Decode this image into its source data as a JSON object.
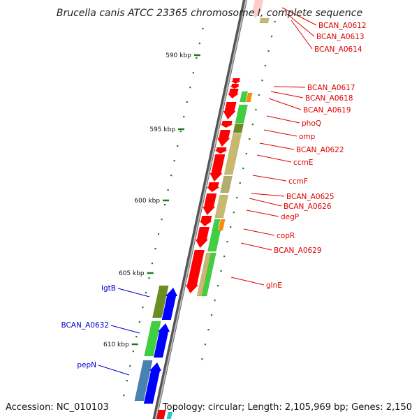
{
  "title": "Brucella canis ATCC 23365 chromosome I, complete sequence",
  "footer": {
    "accession": "Accession: NC_010103",
    "topology": "Topology: circular; Length: 2,105,969 bp; Genes: 2,150"
  },
  "colors": {
    "red": "#ff0000",
    "green": "#3fd03f",
    "olive": "#6b8e23",
    "khaki": "#c8b96e",
    "orange": "#ff8c00",
    "blue": "#0000ff",
    "steel": "#4682b4",
    "label_red": "#e00000",
    "label_blue": "#0000cc",
    "tick": "#1a7a1a",
    "backbone": "#777777"
  },
  "ticks": [
    {
      "kbp": 590,
      "label": "590 kbp"
    },
    {
      "kbp": 595,
      "label": "595 kbp"
    },
    {
      "kbp": 600,
      "label": "600 kbp"
    },
    {
      "kbp": 605,
      "label": "605 kbp"
    },
    {
      "kbp": 610,
      "label": "610 kbp"
    }
  ],
  "genes_right": [
    {
      "name": "BCAN_A0612"
    },
    {
      "name": "BCAN_A0613"
    },
    {
      "name": "BCAN_A0614"
    },
    {
      "name": "BCAN_A0617"
    },
    {
      "name": "BCAN_A0618"
    },
    {
      "name": "BCAN_A0619"
    },
    {
      "name": "phoQ"
    },
    {
      "name": "omp"
    },
    {
      "name": "BCAN_A0622"
    },
    {
      "name": "ccmE"
    },
    {
      "name": "ccmF"
    },
    {
      "name": "BCAN_A0625"
    },
    {
      "name": "BCAN_A0626"
    },
    {
      "name": "degP"
    },
    {
      "name": "copR"
    },
    {
      "name": "BCAN_A0629"
    },
    {
      "name": "glnE"
    }
  ],
  "genes_left": [
    {
      "name": "lgtB"
    },
    {
      "name": "BCAN_A0632"
    },
    {
      "name": "pepN"
    }
  ]
}
